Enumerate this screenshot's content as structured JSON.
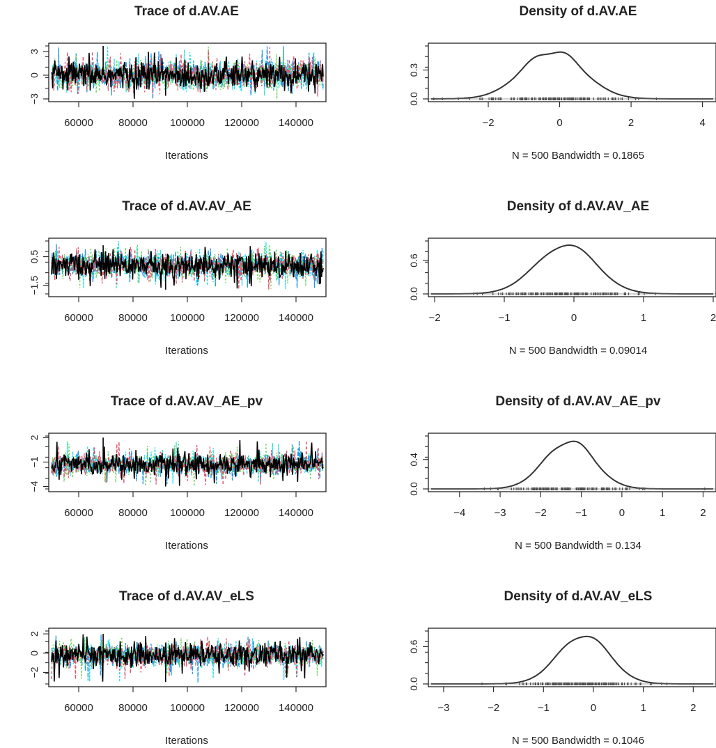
{
  "chart_data": [
    {
      "type": "line",
      "title": "Trace of d.AV.AE",
      "xlabel": "Iterations",
      "xlim": [
        50000,
        150000
      ],
      "x_ticks": [
        "60000",
        "80000",
        "100000",
        "120000",
        "140000"
      ],
      "ylim": [
        -3,
        3.7
      ],
      "y_ticks": [
        "-3",
        "0",
        "3"
      ],
      "series_colors": [
        "#000000",
        "#DF536B",
        "#61D04F",
        "#2297E6",
        "#28E2E5"
      ],
      "center": 0,
      "spread": 0.9,
      "spike_max": 3.7,
      "spike_min": -2.6
    },
    {
      "type": "line",
      "title": "Density of d.AV.AE",
      "xlabel": "N = 500   Bandwidth = 0.1865",
      "xlim": [
        -3.6,
        4.3
      ],
      "x_ticks": [
        "-2",
        "0",
        "2",
        "4"
      ],
      "ylim": [
        0,
        0.55
      ],
      "y_ticks": [
        "0.0",
        "0.3"
      ],
      "density_peak_x": -0.2,
      "density_peak_y": 0.5,
      "density_sd": 0.85
    },
    {
      "type": "line",
      "title": "Trace of d.AV.AV_AE",
      "xlabel": "Iterations",
      "xlim": [
        50000,
        150000
      ],
      "x_ticks": [
        "60000",
        "80000",
        "100000",
        "120000",
        "140000"
      ],
      "ylim": [
        -2.1,
        1.6
      ],
      "y_ticks": [
        "-1.5",
        "0.5"
      ],
      "series_colors": [
        "#000000",
        "#DF536B",
        "#61D04F",
        "#2297E6",
        "#28E2E5"
      ],
      "center": -0.1,
      "spread": 0.45,
      "spike_max": 1.3,
      "spike_min": -1.8
    },
    {
      "type": "line",
      "title": "Density of d.AV.AV_AE",
      "xlabel": "N = 500   Bandwidth = 0.09014",
      "xlim": [
        -2.05,
        2.0
      ],
      "x_ticks": [
        "-2",
        "-1",
        "0",
        "1",
        "2"
      ],
      "ylim": [
        0,
        0.95
      ],
      "y_ticks": [
        "0.0",
        "0.6"
      ],
      "density_peak_x": -0.12,
      "density_peak_y": 0.9,
      "density_sd": 0.42
    },
    {
      "type": "line",
      "title": "Trace of d.AV.AV_AE_pv",
      "xlabel": "Iterations",
      "xlim": [
        50000,
        150000
      ],
      "x_ticks": [
        "60000",
        "80000",
        "100000",
        "120000",
        "140000"
      ],
      "ylim": [
        -4.3,
        2.2
      ],
      "y_ticks": [
        "-4",
        "-1",
        "2"
      ],
      "series_colors": [
        "#000000",
        "#DF536B",
        "#61D04F",
        "#2297E6",
        "#28E2E5"
      ],
      "center": -1.3,
      "spread": 0.65,
      "spike_max": 2.0,
      "spike_min": -4.0
    },
    {
      "type": "line",
      "title": "Density of d.AV.AV_AE_pv",
      "xlabel": "N = 500   Bandwidth = 0.134",
      "xlim": [
        -4.7,
        2.25
      ],
      "x_ticks": [
        "-4",
        "-3",
        "-2",
        "-1",
        "0",
        "1",
        "2"
      ],
      "ylim": [
        0,
        0.72
      ],
      "y_ticks": [
        "0.0",
        "0.4"
      ],
      "density_peak_x": -1.3,
      "density_peak_y": 0.66,
      "density_sd": 0.6
    },
    {
      "type": "line",
      "title": "Trace of d.AV.AV_eLS",
      "xlabel": "Iterations",
      "xlim": [
        50000,
        150000
      ],
      "x_ticks": [
        "60000",
        "80000",
        "100000",
        "120000",
        "140000"
      ],
      "ylim": [
        -3.2,
        2.3
      ],
      "y_ticks": [
        "-2",
        "0",
        "2"
      ],
      "series_colors": [
        "#000000",
        "#DF536B",
        "#61D04F",
        "#2297E6",
        "#28E2E5"
      ],
      "center": -0.2,
      "spread": 0.6,
      "spike_max": 2.0,
      "spike_min": -3.0
    },
    {
      "type": "line",
      "title": "Density of d.AV.AV_eLS",
      "xlabel": "N = 500   Bandwidth = 0.1046",
      "xlim": [
        -3.25,
        2.4
      ],
      "x_ticks": [
        "-3",
        "-2",
        "-1",
        "0",
        "1",
        "2"
      ],
      "ylim": [
        0,
        0.85
      ],
      "y_ticks": [
        "0.0",
        "0.6"
      ],
      "density_peak_x": -0.2,
      "density_peak_y": 0.8,
      "density_sd": 0.5
    }
  ]
}
